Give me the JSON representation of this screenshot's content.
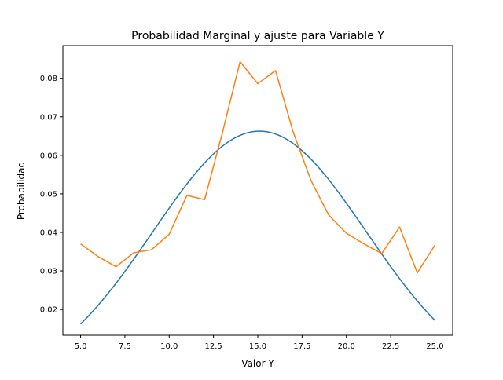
{
  "chart_data": {
    "type": "line",
    "title": "Probabilidad Marginal y ajuste para Variable Y",
    "xlabel": "Valor Y",
    "ylabel": "Probabilidad",
    "xlim": [
      4.0,
      26.0
    ],
    "ylim": [
      0.0133,
      0.0885
    ],
    "grid": false,
    "x_ticks": [
      5.0,
      7.5,
      10.0,
      12.5,
      15.0,
      17.5,
      20.0,
      22.5,
      25.0
    ],
    "x_tick_labels": [
      "5.0",
      "7.5",
      "10.0",
      "12.5",
      "15.0",
      "17.5",
      "20.0",
      "22.5",
      "25.0"
    ],
    "y_ticks": [
      0.02,
      0.03,
      0.04,
      0.05,
      0.06,
      0.07,
      0.08
    ],
    "y_tick_labels": [
      "0.02",
      "0.03",
      "0.04",
      "0.05",
      "0.06",
      "0.07",
      "0.08"
    ],
    "series": [
      {
        "color": "#1f77b4",
        "fit": {
          "kind": "normal",
          "mean": 15.1,
          "sd": 6.02
        },
        "x_range": [
          5,
          25
        ]
      },
      {
        "color": "#ff7f0e",
        "x": [
          5,
          6,
          7,
          8,
          9,
          10,
          11,
          12,
          13,
          14,
          15,
          16,
          17,
          18,
          19,
          20,
          21,
          22,
          23,
          24,
          25
        ],
        "values": [
          0.037,
          0.0337,
          0.0311,
          0.0347,
          0.0355,
          0.0395,
          0.0496,
          0.0485,
          0.0658,
          0.0843,
          0.0786,
          0.082,
          0.066,
          0.0535,
          0.0445,
          0.0398,
          0.037,
          0.0345,
          0.0414,
          0.0295,
          0.0367
        ]
      }
    ]
  }
}
